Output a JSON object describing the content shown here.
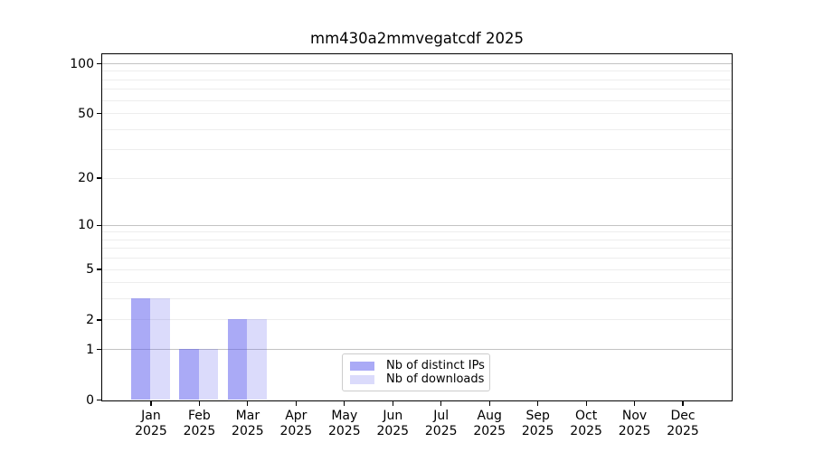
{
  "figure": {
    "background": "#ffffff"
  },
  "chart_data": {
    "type": "bar",
    "title": "mm430a2mmvegatcdf 2025",
    "x_ticks": [
      {
        "line1": "Jan",
        "line2": "2025"
      },
      {
        "line1": "Feb",
        "line2": "2025"
      },
      {
        "line1": "Mar",
        "line2": "2025"
      },
      {
        "line1": "Apr",
        "line2": "2025"
      },
      {
        "line1": "May",
        "line2": "2025"
      },
      {
        "line1": "Jun",
        "line2": "2025"
      },
      {
        "line1": "Jul",
        "line2": "2025"
      },
      {
        "line1": "Aug",
        "line2": "2025"
      },
      {
        "line1": "Sep",
        "line2": "2025"
      },
      {
        "line1": "Oct",
        "line2": "2025"
      },
      {
        "line1": "Nov",
        "line2": "2025"
      },
      {
        "line1": "Dec",
        "line2": "2025"
      }
    ],
    "series": [
      {
        "name": "Nb of distinct IPs",
        "color": "rgba(85,85,238,0.5)",
        "values": [
          3,
          1,
          2,
          0,
          0,
          0,
          0,
          0,
          0,
          0,
          0,
          0
        ]
      },
      {
        "name": "Nb of downloads",
        "color": "rgba(85,85,238,0.21)",
        "values": [
          3,
          1,
          2,
          0,
          0,
          0,
          0,
          0,
          0,
          0,
          0,
          0
        ]
      }
    ],
    "yscale": "log10(1+x)",
    "y_ticks": [
      0,
      1,
      2,
      5,
      10,
      20,
      50,
      100
    ],
    "ylim": [
      0,
      113
    ],
    "grid": {
      "major_values": [
        1,
        10,
        100
      ],
      "minor_values": [
        2,
        3,
        4,
        5,
        6,
        7,
        8,
        9,
        20,
        30,
        40,
        50,
        60,
        70,
        80,
        90
      ],
      "major_color": "#c3c3c3",
      "minor_color": "#ededed"
    },
    "legend_position": "lower center",
    "axis_color": "#000000"
  }
}
